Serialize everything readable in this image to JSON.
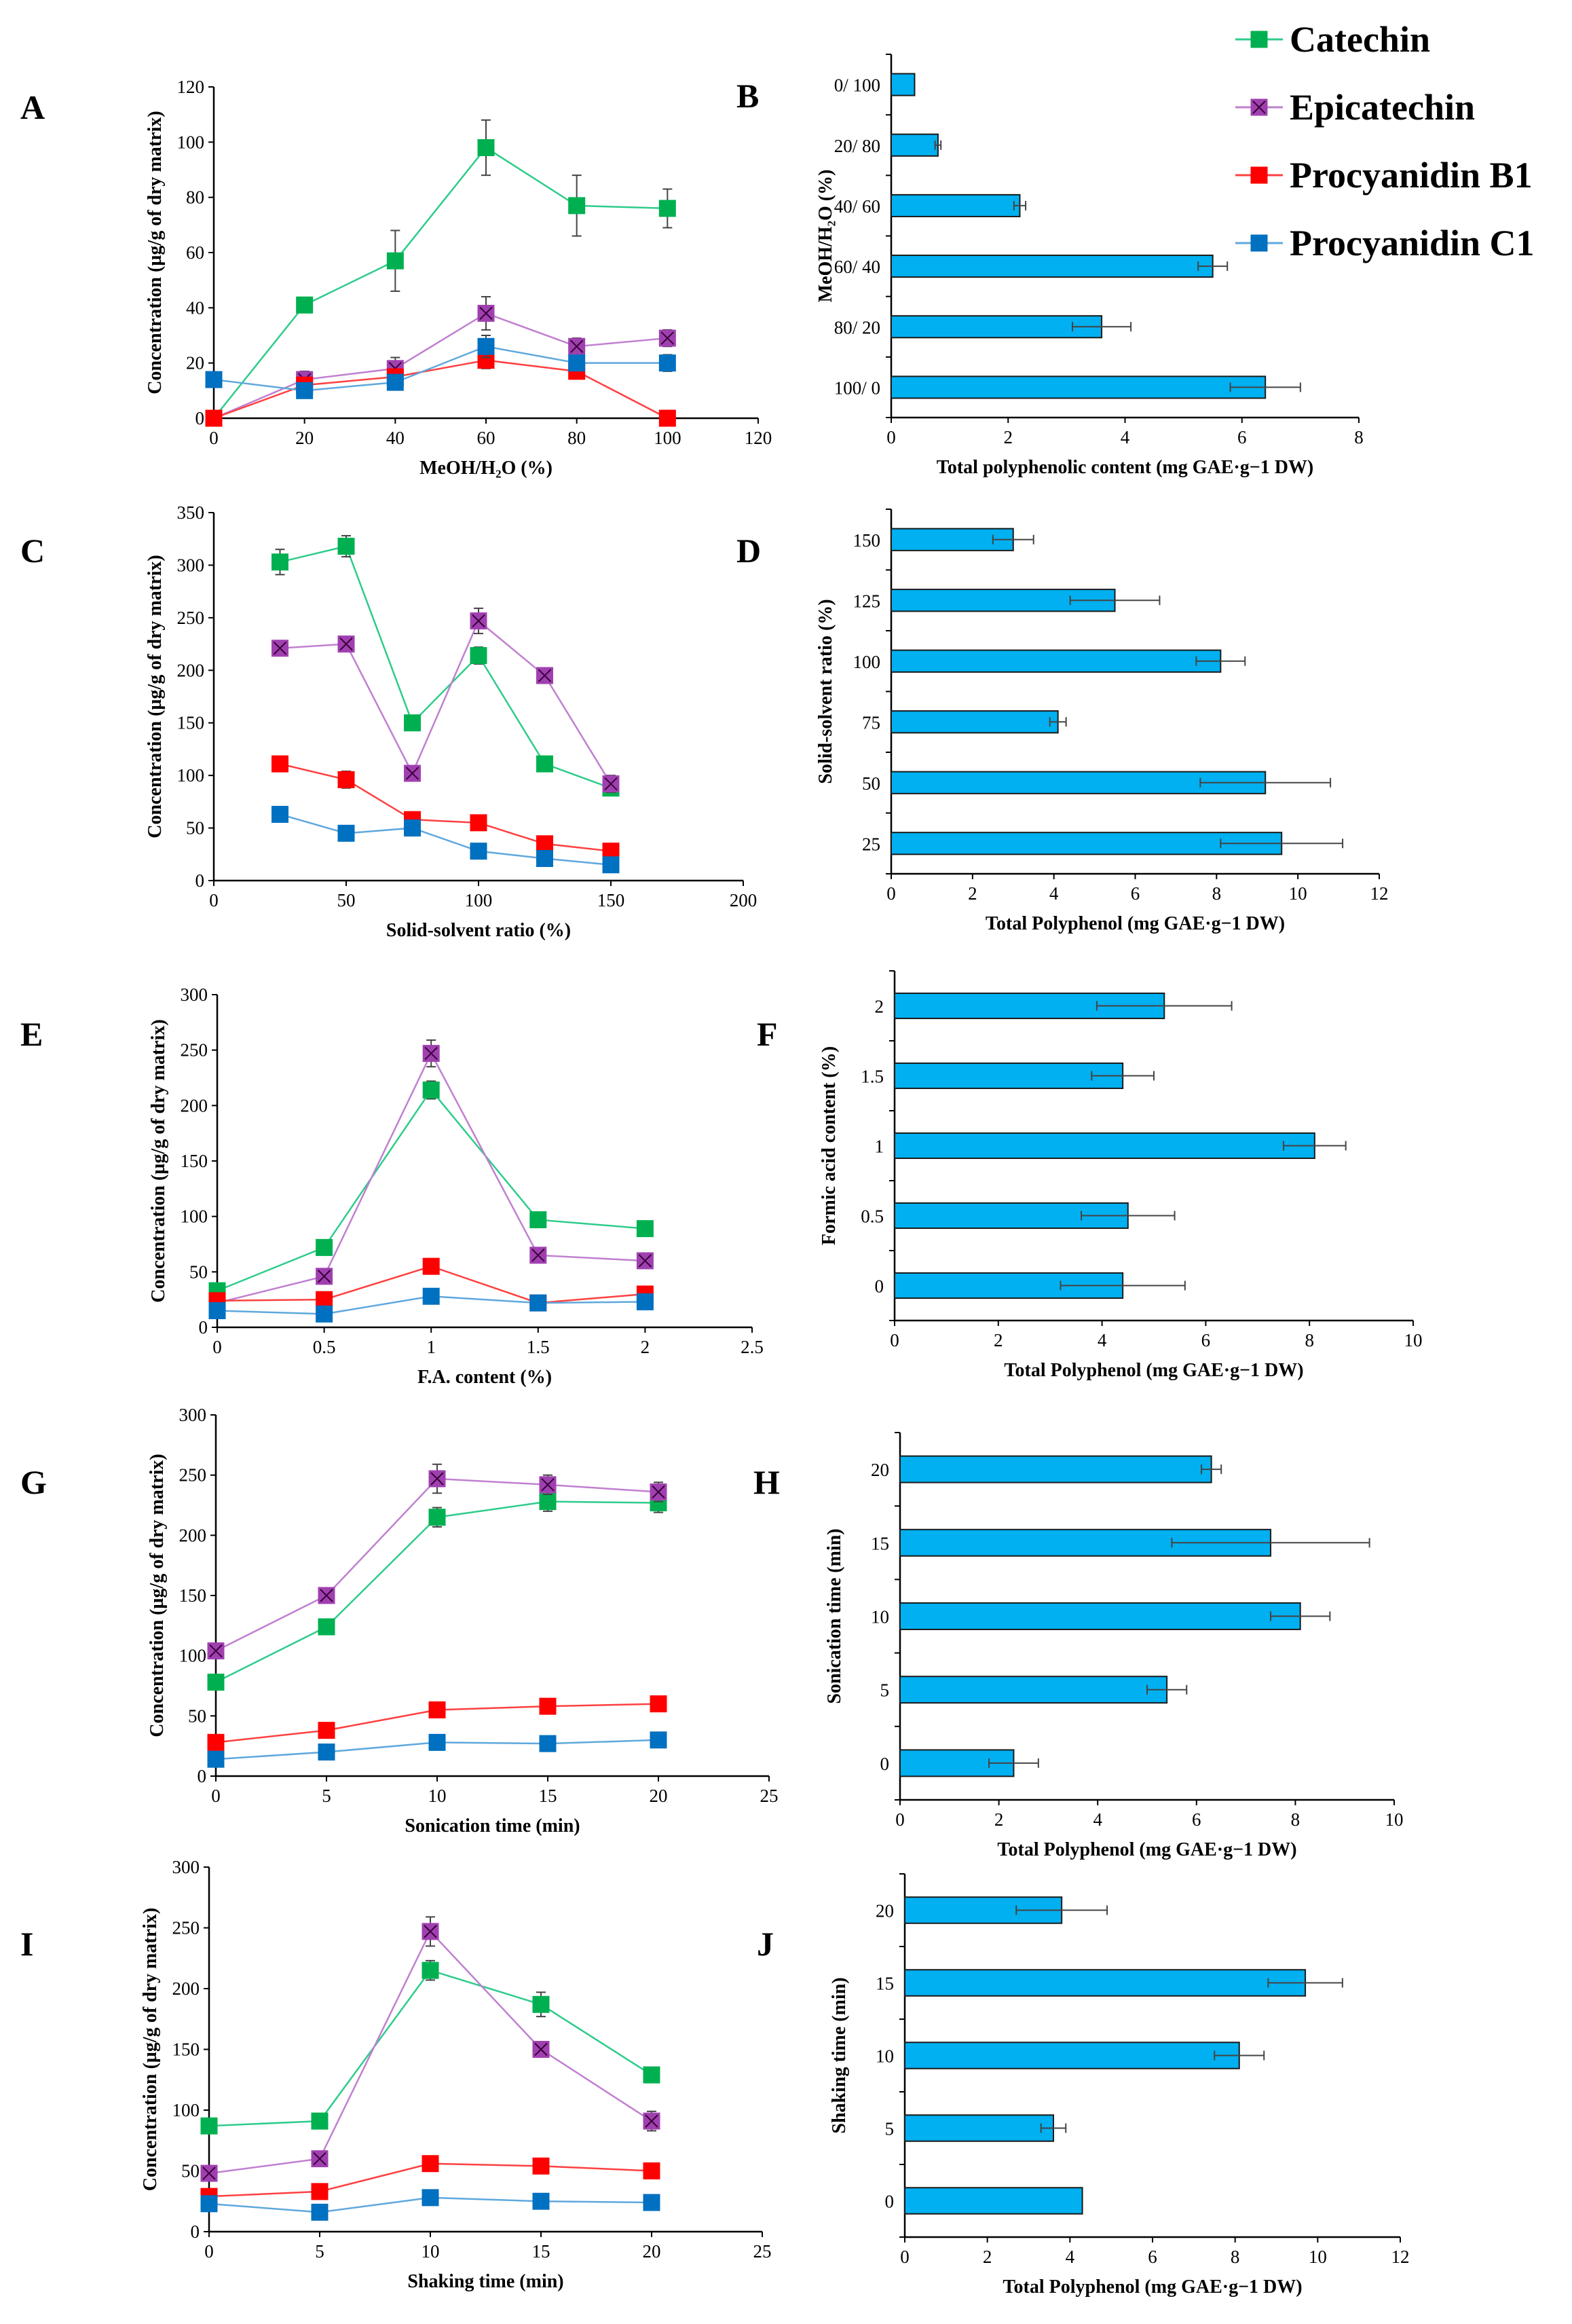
{
  "legend": {
    "items": [
      {
        "name": "Catechin",
        "color": "#00b050",
        "marker": "square"
      },
      {
        "name": "Epicatechin",
        "color": "#a040b0",
        "marker": "square-x"
      },
      {
        "name": "Procyanidin B1",
        "color": "#ff0000",
        "marker": "square"
      },
      {
        "name": "Procyanidin C1",
        "color": "#0070c0",
        "marker": "square"
      }
    ]
  },
  "series_colors": {
    "Catechin": {
      "line": "#2ecc8a",
      "marker": "#00b050"
    },
    "Epicatechin": {
      "line": "#c080d0",
      "marker": "#a040b0"
    },
    "Procyanidin B1": {
      "line": "#ff4040",
      "marker": "#ff0000"
    },
    "Procyanidin C1": {
      "line": "#5fa8dd",
      "marker": "#0070c0"
    }
  },
  "chart_data": [
    {
      "id": "A",
      "letter": "A",
      "type": "line",
      "xlabel": "MeOH/H₂O (%)",
      "ylabel": "Concentration (µg/g of dry matrix)",
      "xlim": [
        0,
        120
      ],
      "ylim": [
        0,
        120
      ],
      "xticks": [
        0,
        20,
        40,
        60,
        80,
        100,
        120
      ],
      "yticks": [
        0,
        20,
        40,
        60,
        80,
        100,
        120
      ],
      "series": [
        {
          "name": "Catechin",
          "x": [
            0,
            20,
            40,
            60,
            80,
            100
          ],
          "values": [
            0,
            41,
            57,
            98,
            77,
            76
          ],
          "errors": [
            0,
            2,
            11,
            10,
            11,
            7
          ]
        },
        {
          "name": "Epicatechin",
          "x": [
            0,
            20,
            40,
            60,
            80,
            100
          ],
          "values": [
            0,
            14,
            18,
            38,
            26,
            29
          ],
          "errors": [
            0,
            3,
            4,
            6,
            3,
            3
          ]
        },
        {
          "name": "Procyanidin B1",
          "x": [
            0,
            20,
            40,
            60,
            80,
            100
          ],
          "values": [
            0,
            12,
            15,
            21,
            17,
            0
          ],
          "errors": [
            0,
            2,
            2,
            3,
            2,
            0
          ]
        },
        {
          "name": "Procyanidin C1",
          "x": [
            0,
            20,
            40,
            60,
            80,
            100
          ],
          "values": [
            14,
            10,
            13,
            26,
            20,
            20
          ],
          "errors": [
            0,
            1,
            2,
            4,
            2,
            3
          ]
        }
      ]
    },
    {
      "id": "B",
      "letter": "B",
      "type": "bar",
      "orientation": "horizontal",
      "xlabel": "Total polyphenolic content (mg GAE·g−1 DW)",
      "ylabel": "MeOH/H₂O (%)",
      "xlim": [
        0,
        8
      ],
      "xticks": [
        0,
        2,
        4,
        6,
        8
      ],
      "categories": [
        "0/ 100",
        "20/ 80",
        "40/ 60",
        "60/ 40",
        "80/ 20",
        "100/ 0"
      ],
      "values": [
        0.4,
        0.8,
        2.2,
        5.5,
        3.6,
        6.4
      ],
      "errors": [
        0.0,
        0.05,
        0.1,
        0.25,
        0.5,
        0.6
      ]
    },
    {
      "id": "C",
      "letter": "C",
      "type": "line",
      "xlabel": "Solid-solvent ratio (%)",
      "ylabel": "Concentration (µg/g of dry matrix)",
      "xlim": [
        0,
        200
      ],
      "ylim": [
        0,
        350
      ],
      "xticks": [
        0,
        50,
        100,
        150,
        200
      ],
      "yticks": [
        0,
        50,
        100,
        150,
        200,
        250,
        300,
        350
      ],
      "series": [
        {
          "name": "Catechin",
          "x": [
            25,
            50,
            75,
            100,
            125,
            150
          ],
          "values": [
            303,
            318,
            150,
            214,
            111,
            88
          ],
          "errors": [
            12,
            10,
            0,
            8,
            0,
            0
          ]
        },
        {
          "name": "Epicatechin",
          "x": [
            25,
            50,
            75,
            100,
            125,
            150
          ],
          "values": [
            221,
            225,
            102,
            247,
            195,
            92
          ],
          "errors": [
            0,
            0,
            0,
            12,
            0,
            8
          ]
        },
        {
          "name": "Procyanidin B1",
          "x": [
            25,
            50,
            75,
            100,
            125,
            150
          ],
          "values": [
            111,
            96,
            58,
            55,
            35,
            28
          ],
          "errors": [
            0,
            8,
            0,
            0,
            0,
            0
          ]
        },
        {
          "name": "Procyanidin C1",
          "x": [
            25,
            50,
            75,
            100,
            125,
            150
          ],
          "values": [
            63,
            45,
            50,
            28,
            21,
            15
          ],
          "errors": [
            0,
            0,
            0,
            0,
            0,
            0
          ]
        }
      ]
    },
    {
      "id": "D",
      "letter": "D",
      "type": "bar",
      "orientation": "horizontal",
      "xlabel": "Total Polyphenol (mg GAE·g−1 DW)",
      "ylabel": "Solid-solvent ratio (%)",
      "xlim": [
        0,
        12
      ],
      "xticks": [
        0,
        2,
        4,
        6,
        8,
        10,
        12
      ],
      "categories": [
        "150",
        "125",
        "100",
        "75",
        "50",
        "25"
      ],
      "values": [
        3.0,
        5.5,
        8.1,
        4.1,
        9.2,
        9.6
      ],
      "errors": [
        0.5,
        1.1,
        0.6,
        0.2,
        1.6,
        1.5
      ]
    },
    {
      "id": "E",
      "letter": "E",
      "type": "line",
      "xlabel": "F.A. content (%)",
      "ylabel": "Concentration (µg/g of dry matrix)",
      "xlim": [
        0,
        2.5
      ],
      "ylim": [
        0,
        300
      ],
      "xticks": [
        0,
        0.5,
        1,
        1.5,
        2,
        2.5
      ],
      "yticks": [
        0,
        50,
        100,
        150,
        200,
        250,
        300
      ],
      "series": [
        {
          "name": "Catechin",
          "x": [
            0,
            0.5,
            1,
            1.5,
            2
          ],
          "values": [
            33,
            72,
            214,
            97,
            89
          ],
          "errors": [
            0,
            0,
            8,
            0,
            0
          ]
        },
        {
          "name": "Epicatechin",
          "x": [
            0,
            0.5,
            1,
            1.5,
            2
          ],
          "values": [
            22,
            46,
            247,
            65,
            60
          ],
          "errors": [
            0,
            0,
            12,
            0,
            0
          ]
        },
        {
          "name": "Procyanidin B1",
          "x": [
            0,
            0.5,
            1,
            1.5,
            2
          ],
          "values": [
            24,
            25,
            55,
            22,
            30
          ],
          "errors": [
            0,
            0,
            0,
            0,
            0
          ]
        },
        {
          "name": "Procyanidin C1",
          "x": [
            0,
            0.5,
            1,
            1.5,
            2
          ],
          "values": [
            15,
            12,
            28,
            22,
            23
          ],
          "errors": [
            0,
            0,
            0,
            0,
            0
          ]
        }
      ]
    },
    {
      "id": "F",
      "letter": "F",
      "type": "bar",
      "orientation": "horizontal",
      "xlabel": "Total Polyphenol (mg GAE·g−1 DW)",
      "ylabel": "Formic acid content (%)",
      "xlim": [
        0,
        10
      ],
      "xticks": [
        0,
        2,
        4,
        6,
        8,
        10
      ],
      "categories": [
        "2",
        "1.5",
        "1",
        "0.5",
        "0"
      ],
      "values": [
        5.2,
        4.4,
        8.1,
        4.5,
        4.4
      ],
      "errors": [
        1.3,
        0.6,
        0.6,
        0.9,
        1.2
      ]
    },
    {
      "id": "G",
      "letter": "G",
      "type": "line",
      "xlabel": "Sonication time (min)",
      "ylabel": "Concentration (µg/g of dry matrix)",
      "xlim": [
        0,
        25
      ],
      "ylim": [
        0,
        300
      ],
      "xticks": [
        0,
        5,
        10,
        15,
        20,
        25
      ],
      "yticks": [
        0,
        50,
        100,
        150,
        200,
        250,
        300
      ],
      "series": [
        {
          "name": "Catechin",
          "x": [
            0,
            5,
            10,
            15,
            20
          ],
          "values": [
            78,
            124,
            215,
            228,
            227
          ],
          "errors": [
            0,
            0,
            8,
            8,
            8
          ]
        },
        {
          "name": "Epicatechin",
          "x": [
            0,
            5,
            10,
            15,
            20
          ],
          "values": [
            104,
            150,
            247,
            242,
            236
          ],
          "errors": [
            0,
            0,
            12,
            8,
            8
          ]
        },
        {
          "name": "Procyanidin B1",
          "x": [
            0,
            5,
            10,
            15,
            20
          ],
          "values": [
            28,
            38,
            55,
            58,
            60
          ],
          "errors": [
            0,
            0,
            0,
            4,
            0
          ]
        },
        {
          "name": "Procyanidin C1",
          "x": [
            0,
            5,
            10,
            15,
            20
          ],
          "values": [
            14,
            20,
            28,
            27,
            30
          ],
          "errors": [
            0,
            0,
            0,
            0,
            0
          ]
        }
      ]
    },
    {
      "id": "H",
      "letter": "H",
      "type": "bar",
      "orientation": "horizontal",
      "xlabel": "Total Polyphenol (mg GAE·g−1 DW)",
      "ylabel": "Sonication time (min)",
      "xlim": [
        0,
        10
      ],
      "xticks": [
        0,
        2,
        4,
        6,
        8,
        10
      ],
      "categories": [
        "20",
        "15",
        "10",
        "5",
        "0"
      ],
      "values": [
        6.3,
        7.5,
        8.1,
        5.4,
        2.3
      ],
      "errors": [
        0.2,
        2.0,
        0.6,
        0.4,
        0.5
      ]
    },
    {
      "id": "I",
      "letter": "I",
      "type": "line",
      "xlabel": "Shaking time (min)",
      "ylabel": "Concentration (µg/g of dry matrix)",
      "xlim": [
        0,
        25
      ],
      "ylim": [
        0,
        300
      ],
      "xticks": [
        0,
        5,
        10,
        15,
        20,
        25
      ],
      "yticks": [
        0,
        50,
        100,
        150,
        200,
        250,
        300
      ],
      "series": [
        {
          "name": "Catechin",
          "x": [
            0,
            5,
            10,
            15,
            20
          ],
          "values": [
            87,
            91,
            215,
            187,
            129
          ],
          "errors": [
            0,
            5,
            8,
            10,
            0
          ]
        },
        {
          "name": "Epicatechin",
          "x": [
            0,
            5,
            10,
            15,
            20
          ],
          "values": [
            48,
            60,
            247,
            150,
            91
          ],
          "errors": [
            0,
            0,
            12,
            0,
            8
          ]
        },
        {
          "name": "Procyanidin B1",
          "x": [
            0,
            5,
            10,
            15,
            20
          ],
          "values": [
            29,
            33,
            56,
            54,
            50
          ],
          "errors": [
            0,
            0,
            0,
            0,
            0
          ]
        },
        {
          "name": "Procyanidin C1",
          "x": [
            0,
            5,
            10,
            15,
            20
          ],
          "values": [
            23,
            16,
            28,
            25,
            24
          ],
          "errors": [
            0,
            0,
            0,
            0,
            0
          ]
        }
      ]
    },
    {
      "id": "J",
      "letter": "J",
      "type": "bar",
      "orientation": "horizontal",
      "xlabel": "Total Polyphenol (mg GAE·g−1 DW)",
      "ylabel": "Shaking time (min)",
      "xlim": [
        0,
        12
      ],
      "xticks": [
        0,
        2,
        4,
        6,
        8,
        10,
        12
      ],
      "categories": [
        "20",
        "15",
        "10",
        "5",
        "0"
      ],
      "values": [
        3.8,
        9.7,
        8.1,
        3.6,
        4.3
      ],
      "errors": [
        1.1,
        0.9,
        0.6,
        0.3,
        0.0
      ]
    }
  ]
}
